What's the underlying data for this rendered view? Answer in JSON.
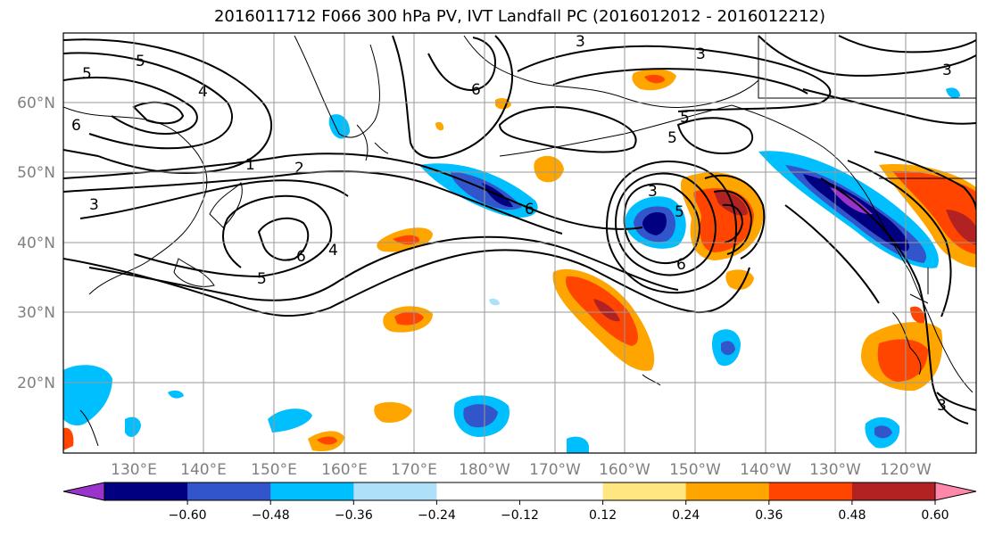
{
  "title": "2016011712 F066 300 hPa PV, IVT Landfall PC (2016012012 - 2016012212)",
  "lon_labels": [
    "130°E",
    "140°E",
    "150°E",
    "160°E",
    "170°E",
    "180°W",
    "170°W",
    "160°W",
    "150°W",
    "140°W",
    "130°W",
    "120°W"
  ],
  "lat_labels": [
    "60°N",
    "50°N",
    "40°N",
    "30°N",
    "20°N"
  ],
  "colorbar": {
    "colors": [
      "#9933cc",
      "#000080",
      "#3355cc",
      "#00bfff",
      "#aee0fa",
      "#ffffff",
      "#ffffff",
      "#ffe680",
      "#ffa500",
      "#ff4500",
      "#b22222",
      "#ff88aa"
    ],
    "ticks": [
      "−0.60",
      "−0.48",
      "−0.36",
      "−0.24",
      "−0.12",
      "0.12",
      "0.24",
      "0.36",
      "0.48",
      "0.60"
    ]
  },
  "contour_labels": [
    "5",
    "5",
    "4",
    "6",
    "1",
    "2",
    "3",
    "6",
    "5",
    "4",
    "3",
    "6",
    "3",
    "5",
    "5",
    "6",
    "5",
    "6",
    "3",
    "3",
    "3"
  ]
}
